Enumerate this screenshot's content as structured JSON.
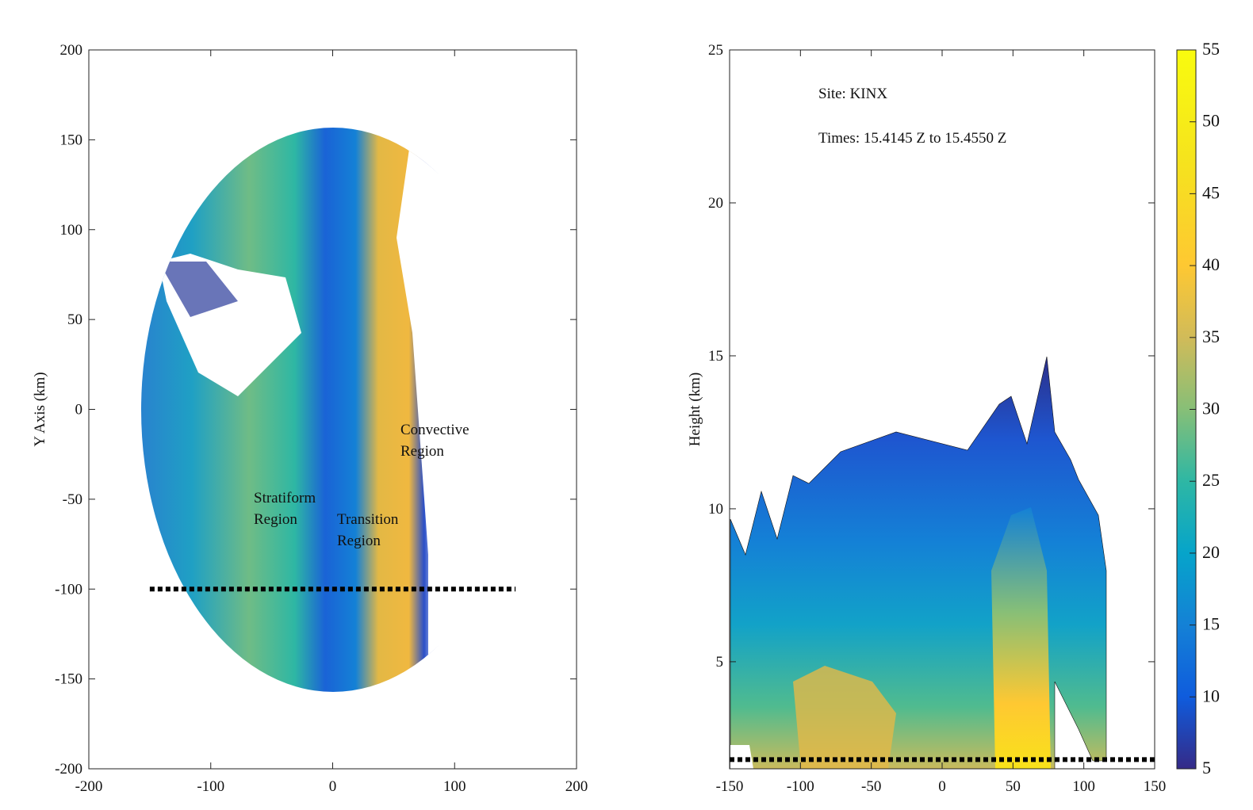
{
  "chart_data": [
    {
      "type": "contour-map",
      "ylabel": "Y Axis (km)",
      "xlim": [
        -200,
        200
      ],
      "ylim": [
        -200,
        200
      ],
      "xticks": [
        -200,
        -100,
        0,
        100,
        200
      ],
      "yticks": [
        -200,
        -150,
        -100,
        -50,
        0,
        50,
        100,
        150,
        200
      ],
      "annotations": [
        [
          "Convective",
          "Region"
        ],
        [
          "Stratiform",
          "Region"
        ],
        [
          "Transition",
          "Region"
        ]
      ],
      "cross_section": {
        "x": [
          -150,
          150
        ],
        "y": [
          -100,
          -100
        ]
      }
    },
    {
      "type": "contour-section",
      "ylabel": "Height  (km)",
      "xlim": [
        -150,
        150
      ],
      "ylim": [
        1.5,
        25
      ],
      "xticks": [
        -150,
        -100,
        -50,
        0,
        50,
        100,
        150
      ],
      "yticks": [
        5,
        10,
        15,
        20,
        25
      ],
      "annotations": [
        [
          "Site: KINX"
        ],
        [
          "Times: 15.4145 Z to 15.4550 Z"
        ]
      ],
      "reference_line": {
        "x": [
          -150,
          150
        ],
        "y": [
          1.8,
          1.8
        ]
      },
      "colorbar": {
        "lim": [
          5,
          55
        ],
        "ticks": [
          5,
          10,
          15,
          20,
          25,
          30,
          35,
          40,
          45,
          50,
          55
        ]
      }
    }
  ]
}
